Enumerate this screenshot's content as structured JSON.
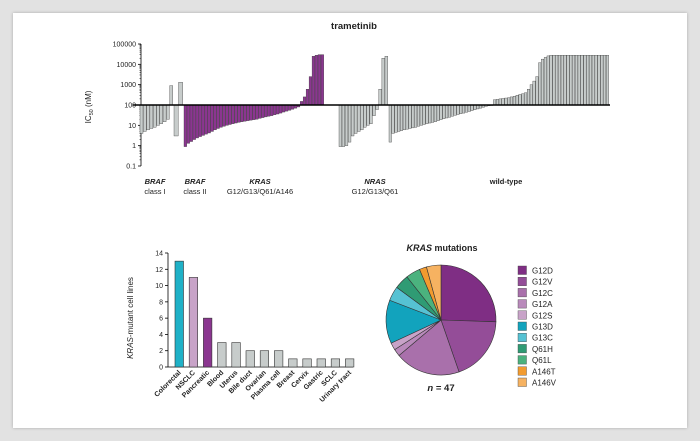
{
  "waterfall": {
    "title": "trametinib",
    "ylabel_main": "IC",
    "ylabel_sub": "50",
    "ylabel_unit": " (nM)",
    "y_ticks": [
      "100000",
      "10000",
      "1000",
      "100",
      "10",
      "1",
      "0.1"
    ],
    "groups": [
      {
        "name": "BRAF",
        "sub": "class I"
      },
      {
        "name": "BRAF",
        "sub": "class II"
      },
      {
        "name": "KRAS",
        "sub": "G12/G13/Q61/A146"
      },
      {
        "name": "NRAS",
        "sub": "G12/G13/Q61"
      },
      {
        "name": "",
        "sub": "wild-type"
      }
    ]
  },
  "bar_panel": {
    "ylabel_italic": "KRAS",
    "ylabel_rest": "-mutant cell lines",
    "y_ticks": [
      "14",
      "12",
      "10",
      "8",
      "6",
      "4",
      "2",
      "0"
    ]
  },
  "pie_panel": {
    "title_italic": "KRAS",
    "title_rest": " mutations",
    "n_italic": "n",
    "n_rest": " = 47"
  },
  "colors": {
    "kras": "#8b3690",
    "other": "#c7cccb",
    "bar_outline": "#333333"
  },
  "chart_data": [
    {
      "type": "bar",
      "title": "trametinib",
      "ylabel": "IC50 (nM)",
      "yscale": "log",
      "ylim": [
        0.1,
        100000
      ],
      "baseline": 100,
      "series": [
        {
          "name": "BRAF class I",
          "values": [
            4,
            5,
            6,
            7,
            8,
            10,
            12,
            15,
            20,
            900
          ]
        },
        {
          "name": "BRAF class II",
          "values": [
            3,
            1300
          ]
        },
        {
          "name": "KRAS G12/G13/Q61/A146",
          "values": [
            0.9,
            1.3,
            1.6,
            2,
            2.4,
            2.8,
            3.2,
            3.7,
            4.2,
            5,
            6,
            7,
            8,
            9,
            10,
            11,
            12,
            13,
            14,
            15,
            16,
            17,
            18,
            19,
            20,
            22,
            24,
            26,
            28,
            30,
            33,
            36,
            40,
            45,
            50,
            55,
            62,
            70,
            80,
            150,
            250,
            600,
            2500,
            25000,
            28000,
            30000,
            30000
          ]
        },
        {
          "name": "NRAS G12/G13/Q61",
          "values": [
            0.9,
            0.9,
            1,
            1.5,
            3,
            4,
            5,
            6,
            8,
            10,
            12,
            30,
            60,
            600,
            20000,
            25000
          ]
        },
        {
          "name": "wild-type",
          "values": [
            1.5,
            4,
            4.5,
            5,
            5.5,
            6,
            6.5,
            7,
            7.5,
            8,
            9,
            10,
            11,
            12,
            13,
            14,
            15,
            17,
            19,
            21,
            23,
            25,
            28,
            31,
            34,
            37,
            40,
            44,
            48,
            53,
            58,
            64,
            70,
            78,
            86,
            92,
            96,
            180,
            190,
            200,
            210,
            220,
            230,
            250,
            270,
            300,
            330,
            360,
            400,
            600,
            1000,
            1500,
            2500,
            12000,
            18000,
            22000,
            26000,
            28000,
            28000,
            28000,
            28000,
            28000,
            28000,
            28000,
            28000,
            28000,
            28000,
            28000,
            28000,
            28000,
            28000,
            28000,
            28000,
            28000,
            28000,
            28000,
            28000,
            28000
          ]
        }
      ]
    },
    {
      "type": "bar",
      "ylabel": "KRAS-mutant cell lines",
      "ylim": [
        0,
        14
      ],
      "categories": [
        "Colorectal",
        "NSCLC",
        "Pancreatic",
        "Blood",
        "Uterus",
        "Bile duct",
        "Ovarian",
        "Plasma cell",
        "Breast",
        "Cervix",
        "Gastric",
        "SCLC",
        "Urinary tract"
      ],
      "values": [
        13,
        11,
        6,
        3,
        3,
        2,
        2,
        2,
        1,
        1,
        1,
        1,
        1
      ],
      "colors": [
        "#1fb1c7",
        "#c8a3c8",
        "#8b3690",
        "#c7cccb",
        "#c7cccb",
        "#c7cccb",
        "#c7cccb",
        "#c7cccb",
        "#c7cccb",
        "#c7cccb",
        "#c7cccb",
        "#c7cccb",
        "#c7cccb"
      ]
    },
    {
      "type": "pie",
      "title": "KRAS mutations",
      "legend_position": "right",
      "labels": [
        "G12D",
        "G12V",
        "G12C",
        "G12A",
        "G12S",
        "G13D",
        "G13C",
        "Q61H",
        "Q61L",
        "A146T",
        "A146V"
      ],
      "values": [
        12,
        9,
        9,
        1,
        1,
        6,
        2,
        2,
        2,
        1,
        2
      ],
      "colors": [
        "#7f2e84",
        "#944d98",
        "#a970ab",
        "#b98abb",
        "#c8a3c8",
        "#12a3bd",
        "#56c2d3",
        "#2f9b74",
        "#4bb27e",
        "#f29b2f",
        "#f6b261"
      ]
    }
  ]
}
